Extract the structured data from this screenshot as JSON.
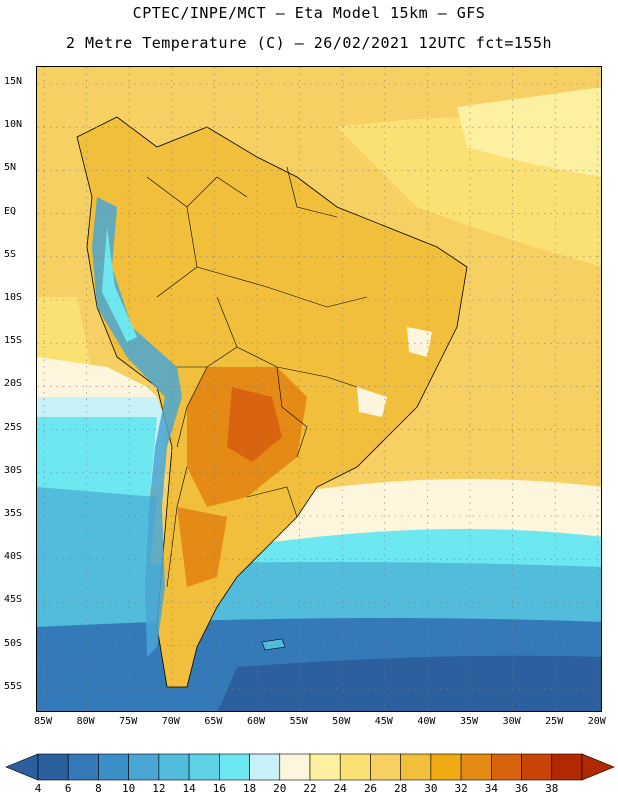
{
  "header": {
    "title_line1": "CPTEC/INPE/MCT –  Eta Model 15km – GFS",
    "title_line2": "2 Metre Temperature (C) – 26/02/2021 12UTC fct=155h"
  },
  "axes": {
    "lat_labels": [
      "15N",
      "10N",
      "5N",
      "EQ",
      "5S",
      "10S",
      "15S",
      "20S",
      "25S",
      "30S",
      "35S",
      "40S",
      "45S",
      "50S",
      "55S"
    ],
    "lon_labels": [
      "85W",
      "80W",
      "75W",
      "70W",
      "65W",
      "60W",
      "55W",
      "50W",
      "45W",
      "40W",
      "35W",
      "30W",
      "25W",
      "20W"
    ]
  },
  "colorbar": {
    "labels": [
      "4",
      "6",
      "8",
      "10",
      "12",
      "14",
      "16",
      "18",
      "20",
      "22",
      "24",
      "26",
      "28",
      "30",
      "32",
      "34",
      "36",
      "38"
    ],
    "colors": [
      "#2b5f9e",
      "#3479b8",
      "#3b8fc7",
      "#4aa6d2",
      "#52bcdc",
      "#5fd2e6",
      "#6ee8f0",
      "#c8f2f8",
      "#fdf5dc",
      "#fdf0a0",
      "#fbe174",
      "#f6d062",
      "#f1bf3c",
      "#eeaa10",
      "#e58a14",
      "#d96410",
      "#c84408",
      "#b22800"
    ]
  },
  "map": {
    "region": "South America",
    "field": "2 Metre Temperature",
    "colors": {
      "ocean_south": "#2b5f9e",
      "ocean_mid": "#52bcdc",
      "ocean_cyan": "#6ee8f0",
      "land_warm": "#f1bf3c",
      "land_hot": "#e58a14",
      "tropics": "#f6d062",
      "andes": "#4aa6d2"
    }
  }
}
